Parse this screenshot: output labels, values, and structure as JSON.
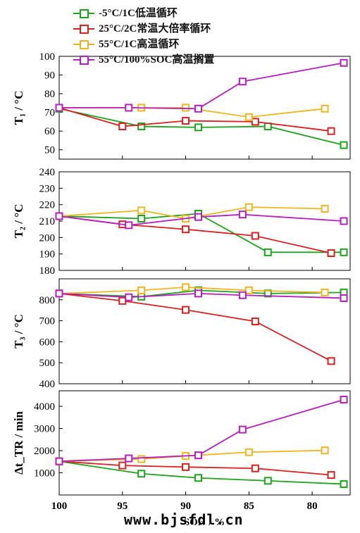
{
  "legend": {
    "items": [
      {
        "label": "-5°C/1C低温循环",
        "color": "#1aa51a"
      },
      {
        "label": "25°C/2C常温大倍率循环",
        "color": "#dd1f1f"
      },
      {
        "label": "55°C/1C高温循环",
        "color": "#f2b51e"
      },
      {
        "label": "55°C/100%SOC高温搁置",
        "color": "#b51fc0"
      }
    ]
  },
  "watermark": "www.bjsfdl.cn",
  "chart_data": {
    "type": "line",
    "xlabel": "SOH / %",
    "xlim": [
      100,
      77
    ],
    "x_ticks": [
      100,
      95,
      90,
      85,
      80
    ],
    "x_reversed": true,
    "panels": [
      {
        "ylabel": "T₁ / °C",
        "ylim": [
          45,
          100
        ],
        "y_ticks": [
          50,
          60,
          70,
          80,
          90,
          100
        ],
        "series": [
          {
            "color": "#1aa51a",
            "points": [
              [
                100,
                72
              ],
              [
                93.5,
                62.5
              ],
              [
                89,
                62
              ],
              [
                83.5,
                62.5
              ],
              [
                77.5,
                52.5
              ]
            ]
          },
          {
            "color": "#dd1f1f",
            "points": [
              [
                100,
                72.5
              ],
              [
                95,
                62.5
              ],
              [
                90,
                65.5
              ],
              [
                84.5,
                65
              ],
              [
                78.5,
                60
              ]
            ]
          },
          {
            "color": "#f2b51e",
            "points": [
              [
                100,
                72.5
              ],
              [
                93.5,
                72.5
              ],
              [
                90,
                72.5
              ],
              [
                85,
                67.5
              ],
              [
                79,
                72
              ]
            ]
          },
          {
            "color": "#b51fc0",
            "points": [
              [
                100,
                72.5
              ],
              [
                94.5,
                72.5
              ],
              [
                89,
                72
              ],
              [
                85.5,
                86.5
              ],
              [
                77.5,
                96.5
              ]
            ]
          }
        ]
      },
      {
        "ylabel": "T₂ / °C",
        "ylim": [
          180,
          240
        ],
        "y_ticks": [
          180,
          190,
          200,
          210,
          220,
          230,
          240
        ],
        "series": [
          {
            "color": "#1aa51a",
            "points": [
              [
                100,
                213
              ],
              [
                93.5,
                211.5
              ],
              [
                89,
                214.5
              ],
              [
                83.5,
                191
              ],
              [
                77.5,
                191
              ]
            ]
          },
          {
            "color": "#dd1f1f",
            "points": [
              [
                100,
                213
              ],
              [
                95,
                208
              ],
              [
                90,
                205
              ],
              [
                84.5,
                201
              ],
              [
                78.5,
                190.5
              ]
            ]
          },
          {
            "color": "#f2b51e",
            "points": [
              [
                100,
                213
              ],
              [
                93.5,
                216.5
              ],
              [
                90,
                211.5
              ],
              [
                85,
                218.5
              ],
              [
                79,
                217.5
              ]
            ]
          },
          {
            "color": "#b51fc0",
            "points": [
              [
                100,
                213
              ],
              [
                94.5,
                207.5
              ],
              [
                89,
                212.5
              ],
              [
                85.5,
                214
              ],
              [
                77.5,
                210
              ]
            ]
          }
        ]
      },
      {
        "ylabel": "T₃ / °C",
        "ylim": [
          400,
          900
        ],
        "y_ticks": [
          400,
          500,
          600,
          700,
          800
        ],
        "series": [
          {
            "color": "#1aa51a",
            "points": [
              [
                100,
                830
              ],
              [
                93.5,
                815
              ],
              [
                89,
                845
              ],
              [
                83.5,
                830
              ],
              [
                77.5,
                835
              ]
            ]
          },
          {
            "color": "#dd1f1f",
            "points": [
              [
                100,
                830
              ],
              [
                95,
                795
              ],
              [
                90,
                752
              ],
              [
                84.5,
                697
              ],
              [
                78.5,
                508
              ]
            ]
          },
          {
            "color": "#f2b51e",
            "points": [
              [
                100,
                830
              ],
              [
                93.5,
                845
              ],
              [
                90,
                860
              ],
              [
                85,
                845
              ],
              [
                79,
                835
              ]
            ]
          },
          {
            "color": "#b51fc0",
            "points": [
              [
                100,
                830
              ],
              [
                94.5,
                812
              ],
              [
                89,
                830
              ],
              [
                85.5,
                822
              ],
              [
                77.5,
                808
              ]
            ]
          }
        ]
      },
      {
        "ylabel": "Δt_TR / min",
        "ylim": [
          0,
          4700
        ],
        "y_ticks": [
          1000,
          2000,
          3000,
          4000
        ],
        "series": [
          {
            "color": "#1aa51a",
            "points": [
              [
                100,
                1520
              ],
              [
                93.5,
                960
              ],
              [
                89,
                770
              ],
              [
                83.5,
                640
              ],
              [
                77.5,
                490
              ]
            ]
          },
          {
            "color": "#dd1f1f",
            "points": [
              [
                100,
                1520
              ],
              [
                95,
                1330
              ],
              [
                90,
                1260
              ],
              [
                84.5,
                1200
              ],
              [
                78.5,
                900
              ]
            ]
          },
          {
            "color": "#f2b51e",
            "points": [
              [
                100,
                1520
              ],
              [
                93.5,
                1620
              ],
              [
                90,
                1760
              ],
              [
                85,
                1930
              ],
              [
                79,
                2010
              ]
            ]
          },
          {
            "color": "#b51fc0",
            "points": [
              [
                100,
                1520
              ],
              [
                94.5,
                1650
              ],
              [
                89,
                1790
              ],
              [
                85.5,
                2950
              ],
              [
                77.5,
                4300
              ]
            ]
          }
        ]
      }
    ]
  }
}
